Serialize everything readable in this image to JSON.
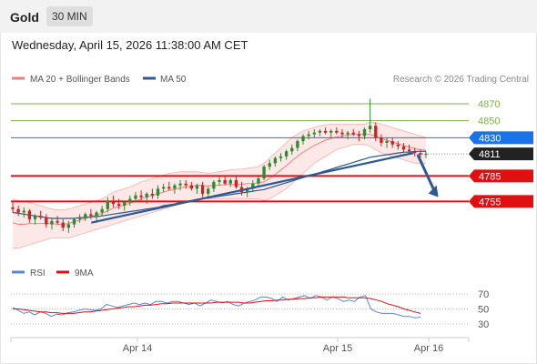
{
  "header": {
    "instrument": "Gold",
    "timeframe": "30 MIN",
    "datetime": "Wednesday, April 15, 2026 11:38:00 AM CET"
  },
  "legend": {
    "bollinger_label": "MA 20 + Bollinger Bands",
    "ma50_label": "MA 50",
    "copyright": "Research © 2026 Trading Central"
  },
  "rsi_legend": {
    "rsi_label": "RSI",
    "ma9_label": "9MA"
  },
  "colors": {
    "bollinger": "#f08080",
    "band_fill": "#fde8e8",
    "ma50": "#2c5a94",
    "up_candle": "#2e8b2e",
    "down_candle": "#cc2222",
    "resistance": "#7cb342",
    "pivot": "#1a73e8",
    "support": "#e01010",
    "current": "#222222",
    "rsi": "#5b86d6",
    "rsi_ma": "#e01010"
  },
  "chart_data": [
    {
      "type": "candlestick",
      "ylim": [
        4690,
        4885
      ],
      "xlabels": [
        "Apr 14",
        "Apr 15",
        "Apr 16"
      ],
      "levels": [
        {
          "value": 4870,
          "label": "4870",
          "kind": "resistance"
        },
        {
          "value": 4850,
          "label": "4850",
          "kind": "resistance"
        },
        {
          "value": 4830,
          "label": "4830",
          "kind": "pivot"
        },
        {
          "value": 4811,
          "label": "4811",
          "kind": "current"
        },
        {
          "value": 4785,
          "label": "4785",
          "kind": "support"
        },
        {
          "value": 4755,
          "label": "4755",
          "kind": "support"
        }
      ],
      "trendline": [
        [
          0.19,
          4730
        ],
        [
          0.97,
          4812
        ]
      ],
      "forecast_arrow": [
        [
          0.98,
          4810
        ],
        [
          1.03,
          4760
        ]
      ],
      "ohlc": [
        [
          4748,
          4754,
          4742,
          4746
        ],
        [
          4746,
          4750,
          4738,
          4742
        ],
        [
          4742,
          4748,
          4736,
          4744
        ],
        [
          4744,
          4746,
          4730,
          4734
        ],
        [
          4734,
          4740,
          4728,
          4738
        ],
        [
          4738,
          4744,
          4734,
          4736
        ],
        [
          4736,
          4740,
          4724,
          4728
        ],
        [
          4728,
          4736,
          4722,
          4732
        ],
        [
          4732,
          4738,
          4728,
          4730
        ],
        [
          4730,
          4734,
          4720,
          4724
        ],
        [
          4724,
          4732,
          4718,
          4728
        ],
        [
          4728,
          4736,
          4724,
          4734
        ],
        [
          4734,
          4740,
          4730,
          4736
        ],
        [
          4736,
          4742,
          4732,
          4740
        ],
        [
          4740,
          4746,
          4734,
          4738
        ],
        [
          4738,
          4744,
          4730,
          4742
        ],
        [
          4742,
          4750,
          4738,
          4746
        ],
        [
          4746,
          4760,
          4742,
          4756
        ],
        [
          4756,
          4762,
          4748,
          4752
        ],
        [
          4752,
          4758,
          4746,
          4750
        ],
        [
          4750,
          4756,
          4744,
          4754
        ],
        [
          4754,
          4762,
          4750,
          4758
        ],
        [
          4758,
          4766,
          4754,
          4762
        ],
        [
          4762,
          4768,
          4756,
          4760
        ],
        [
          4760,
          4766,
          4752,
          4764
        ],
        [
          4764,
          4770,
          4758,
          4762
        ],
        [
          4762,
          4774,
          4758,
          4770
        ],
        [
          4770,
          4776,
          4766,
          4772
        ],
        [
          4772,
          4778,
          4768,
          4770
        ],
        [
          4770,
          4776,
          4764,
          4774
        ],
        [
          4774,
          4780,
          4768,
          4776
        ],
        [
          4776,
          4780,
          4770,
          4774
        ],
        [
          4774,
          4778,
          4768,
          4770
        ],
        [
          4770,
          4776,
          4764,
          4774
        ],
        [
          4774,
          4778,
          4760,
          4764
        ],
        [
          4764,
          4772,
          4760,
          4770
        ],
        [
          4770,
          4780,
          4766,
          4778
        ],
        [
          4778,
          4784,
          4774,
          4780
        ],
        [
          4780,
          4784,
          4774,
          4776
        ],
        [
          4776,
          4782,
          4772,
          4780
        ],
        [
          4780,
          4784,
          4770,
          4772
        ],
        [
          4772,
          4778,
          4762,
          4766
        ],
        [
          4766,
          4772,
          4760,
          4770
        ],
        [
          4770,
          4780,
          4766,
          4776
        ],
        [
          4776,
          4784,
          4772,
          4782
        ],
        [
          4782,
          4798,
          4780,
          4796
        ],
        [
          4796,
          4804,
          4792,
          4800
        ],
        [
          4800,
          4808,
          4796,
          4806
        ],
        [
          4806,
          4812,
          4802,
          4808
        ],
        [
          4808,
          4816,
          4804,
          4814
        ],
        [
          4814,
          4822,
          4810,
          4818
        ],
        [
          4818,
          4828,
          4814,
          4826
        ],
        [
          4826,
          4834,
          4822,
          4832
        ],
        [
          4832,
          4838,
          4828,
          4834
        ],
        [
          4834,
          4840,
          4830,
          4836
        ],
        [
          4836,
          4840,
          4832,
          4838
        ],
        [
          4838,
          4842,
          4834,
          4836
        ],
        [
          4836,
          4840,
          4830,
          4838
        ],
        [
          4838,
          4842,
          4834,
          4836
        ],
        [
          4836,
          4840,
          4830,
          4834
        ],
        [
          4834,
          4838,
          4828,
          4836
        ],
        [
          4836,
          4840,
          4832,
          4834
        ],
        [
          4834,
          4838,
          4826,
          4832
        ],
        [
          4832,
          4842,
          4828,
          4840
        ],
        [
          4840,
          4876,
          4836,
          4844
        ],
        [
          4844,
          4848,
          4826,
          4830
        ],
        [
          4830,
          4834,
          4820,
          4824
        ],
        [
          4824,
          4830,
          4818,
          4826
        ],
        [
          4826,
          4830,
          4818,
          4822
        ],
        [
          4822,
          4826,
          4816,
          4820
        ],
        [
          4820,
          4824,
          4812,
          4816
        ],
        [
          4816,
          4822,
          4810,
          4814
        ],
        [
          4814,
          4818,
          4808,
          4812
        ],
        [
          4812,
          4816,
          4806,
          4810
        ],
        [
          4810,
          4814,
          4806,
          4811
        ]
      ],
      "bollinger_upper": [
        4758,
        4756,
        4755,
        4754,
        4752,
        4750,
        4748,
        4746,
        4745,
        4745,
        4746,
        4748,
        4750,
        4752,
        4754,
        4756,
        4758,
        4762,
        4766,
        4768,
        4770,
        4772,
        4775,
        4778,
        4780,
        4782,
        4784,
        4786,
        4788,
        4789,
        4790,
        4790,
        4790,
        4790,
        4789,
        4788,
        4789,
        4790,
        4791,
        4792,
        4793,
        4793,
        4794,
        4795,
        4796,
        4800,
        4806,
        4812,
        4818,
        4824,
        4830,
        4834,
        4838,
        4840,
        4842,
        4844,
        4845,
        4846,
        4846,
        4846,
        4846,
        4846,
        4846,
        4846,
        4848,
        4848,
        4846,
        4844,
        4842,
        4840,
        4838,
        4836,
        4834,
        4832,
        4830
      ],
      "bollinger_lower": [
        4700,
        4700,
        4702,
        4704,
        4706,
        4708,
        4710,
        4712,
        4712,
        4712,
        4712,
        4714,
        4716,
        4718,
        4720,
        4722,
        4724,
        4726,
        4728,
        4730,
        4732,
        4734,
        4736,
        4738,
        4740,
        4742,
        4744,
        4746,
        4748,
        4750,
        4752,
        4754,
        4756,
        4758,
        4758,
        4758,
        4758,
        4758,
        4758,
        4758,
        4758,
        4758,
        4758,
        4758,
        4758,
        4756,
        4758,
        4762,
        4766,
        4770,
        4776,
        4782,
        4788,
        4794,
        4800,
        4804,
        4808,
        4812,
        4816,
        4818,
        4820,
        4822,
        4822,
        4822,
        4820,
        4816,
        4812,
        4810,
        4808,
        4806,
        4804,
        4802,
        4800,
        4800,
        4800
      ],
      "ma20": [
        4730,
        4728,
        4728,
        4729,
        4729,
        4729,
        4729,
        4729,
        4728,
        4728,
        4729,
        4731,
        4733,
        4735,
        4737,
        4739,
        4741,
        4744,
        4747,
        4749,
        4751,
        4753,
        4755,
        4758,
        4760,
        4762,
        4764,
        4766,
        4768,
        4769,
        4771,
        4772,
        4773,
        4774,
        4774,
        4773,
        4774,
        4774,
        4775,
        4775,
        4775,
        4775,
        4776,
        4776,
        4777,
        4778,
        4782,
        4787,
        4792,
        4797,
        4803,
        4808,
        4813,
        4817,
        4821,
        4824,
        4827,
        4829,
        4831,
        4832,
        4833,
        4834,
        4834,
        4834,
        4834,
        4832,
        4829,
        4827,
        4825,
        4823,
        4821,
        4819,
        4817,
        4816,
        4815
      ],
      "ma50": [
        4742,
        4741,
        4740,
        4739,
        4738,
        4737,
        4736,
        4735,
        4735,
        4735,
        4735,
        4735,
        4736,
        4736,
        4737,
        4737,
        4738,
        4739,
        4740,
        4741,
        4742,
        4743,
        4744,
        4745,
        4746,
        4747,
        4748,
        4750,
        4751,
        4752,
        4754,
        4755,
        4756,
        4757,
        4758,
        4759,
        4760,
        4761,
        4762,
        4763,
        4764,
        4765,
        4766,
        4767,
        4768,
        4769,
        4771,
        4773,
        4775,
        4777,
        4779,
        4781,
        4783,
        4785,
        4787,
        4789,
        4791,
        4793,
        4795,
        4797,
        4799,
        4801,
        4803,
        4805,
        4807,
        4808,
        4809,
        4810,
        4811,
        4812,
        4813,
        4813,
        4814,
        4814,
        4814
      ]
    },
    {
      "type": "line",
      "ylim": [
        20,
        80
      ],
      "yticks": [
        70,
        50,
        30
      ],
      "series": [
        {
          "name": "RSI",
          "values": [
            52,
            48,
            44,
            46,
            42,
            46,
            44,
            40,
            43,
            42,
            45,
            46,
            48,
            50,
            49,
            48,
            50,
            56,
            54,
            52,
            54,
            56,
            58,
            56,
            58,
            56,
            60,
            60,
            58,
            60,
            60,
            58,
            56,
            58,
            54,
            58,
            62,
            60,
            58,
            60,
            56,
            54,
            58,
            60,
            62,
            66,
            66,
            64,
            60,
            66,
            62,
            64,
            66,
            68,
            64,
            68,
            66,
            62,
            66,
            64,
            60,
            62,
            60,
            66,
            68,
            50,
            46,
            44,
            44,
            44,
            42,
            40,
            40,
            38,
            39
          ]
        },
        {
          "name": "9MA",
          "values": [
            50,
            50,
            49,
            48,
            47,
            46,
            46,
            45,
            45,
            44,
            44,
            44,
            45,
            46,
            46,
            47,
            48,
            49,
            50,
            51,
            52,
            53,
            53,
            54,
            55,
            55,
            56,
            57,
            57,
            58,
            58,
            58,
            58,
            58,
            58,
            58,
            58,
            59,
            59,
            59,
            59,
            59,
            58,
            58,
            59,
            60,
            61,
            61,
            62,
            62,
            63,
            63,
            64,
            64,
            65,
            65,
            66,
            66,
            66,
            66,
            66,
            65,
            65,
            65,
            65,
            64,
            62,
            60,
            57,
            55,
            53,
            50,
            48,
            46,
            44
          ]
        }
      ]
    }
  ]
}
